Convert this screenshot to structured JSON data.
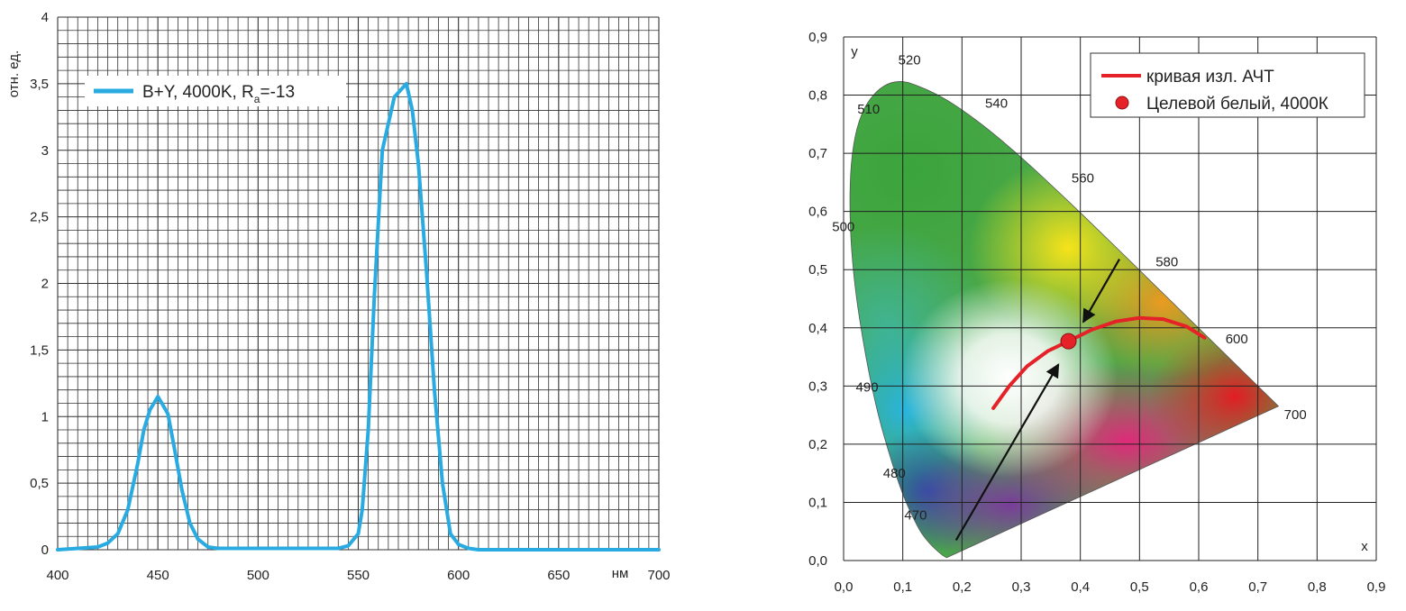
{
  "chart_data": [
    {
      "type": "line",
      "title": "",
      "xlabel": "нм",
      "ylabel": "отн. ед.",
      "xlim": [
        400,
        700
      ],
      "ylim": [
        0,
        4
      ],
      "x_ticks": [
        "400",
        "450",
        "500",
        "550",
        "600",
        "650",
        "700"
      ],
      "y_ticks": [
        "0",
        "0,5",
        "1",
        "1,5",
        "2",
        "2,5",
        "3",
        "3,5",
        "4"
      ],
      "grid": true,
      "legend": "top-left",
      "series": [
        {
          "name": "B+Y, 4000K, R",
          "name_subscript": "a",
          "name_suffix": "=-13",
          "color": "#29abe2",
          "x": [
            400,
            410,
            420,
            425,
            430,
            435,
            440,
            443,
            446,
            450,
            452,
            455,
            458,
            462,
            466,
            470,
            475,
            480,
            500,
            520,
            540,
            545,
            550,
            552,
            555,
            558,
            562,
            565,
            568,
            571,
            574,
            577,
            580,
            584,
            588,
            592,
            596,
            600,
            605,
            610,
            650,
            700
          ],
          "y": [
            0,
            0.01,
            0.02,
            0.05,
            0.12,
            0.3,
            0.65,
            0.9,
            1.05,
            1.15,
            1.1,
            1.02,
            0.78,
            0.45,
            0.2,
            0.08,
            0.02,
            0.01,
            0.01,
            0.01,
            0.01,
            0.03,
            0.12,
            0.3,
            0.9,
            1.9,
            3.0,
            3.2,
            3.4,
            3.45,
            3.5,
            3.3,
            2.9,
            2.1,
            1.2,
            0.5,
            0.12,
            0.04,
            0.01,
            0,
            0,
            0
          ]
        }
      ]
    },
    {
      "type": "scatter",
      "title": "",
      "xlabel": "x",
      "ylabel": "y",
      "xlim": [
        0,
        0.9
      ],
      "ylim": [
        0,
        0.9
      ],
      "x_ticks": [
        "0,0",
        "0,1",
        "0,2",
        "0,3",
        "0,4",
        "0,5",
        "0,6",
        "0,7",
        "0,8",
        "0,9"
      ],
      "y_ticks": [
        "0,0",
        "0,1",
        "0,2",
        "0,3",
        "0,4",
        "0,5",
        "0,6",
        "0,7",
        "0,8",
        "0,9"
      ],
      "grid": true,
      "legend": "top-right",
      "locus": {
        "x": [
          0.1741,
          0.1666,
          0.144,
          0.1241,
          0.0913,
          0.0454,
          0.0082,
          0.0139,
          0.0743,
          0.1547,
          0.2296,
          0.3016,
          0.3731,
          0.4441,
          0.5125,
          0.5752,
          0.627,
          0.7347
        ],
        "y": [
          0.005,
          0.0089,
          0.0297,
          0.0578,
          0.1327,
          0.295,
          0.5384,
          0.7502,
          0.8338,
          0.8059,
          0.7543,
          0.6923,
          0.6245,
          0.5547,
          0.4866,
          0.4242,
          0.3725,
          0.2653
        ]
      },
      "wavelength_labels": [
        {
          "text": "470",
          "x": 0.124,
          "y": 0.058
        },
        {
          "text": "480",
          "x": 0.091,
          "y": 0.133
        },
        {
          "text": "490",
          "x": 0.045,
          "y": 0.295
        },
        {
          "text": "500",
          "x": 0.008,
          "y": 0.538
        },
        {
          "text": "510",
          "x": 0.014,
          "y": 0.75
        },
        {
          "text": "520",
          "x": 0.074,
          "y": 0.834
        },
        {
          "text": "540",
          "x": 0.23,
          "y": 0.754
        },
        {
          "text": "560",
          "x": 0.373,
          "y": 0.625
        },
        {
          "text": "580",
          "x": 0.512,
          "y": 0.487
        },
        {
          "text": "600",
          "x": 0.627,
          "y": 0.373
        },
        {
          "text": "700",
          "x": 0.735,
          "y": 0.265
        }
      ],
      "series": [
        {
          "name": "кривая изл. АЧТ",
          "color": "#e52228",
          "x": [
            0.253,
            0.28,
            0.31,
            0.345,
            0.38,
            0.42,
            0.46,
            0.5,
            0.54,
            0.58,
            0.61
          ],
          "y": [
            0.262,
            0.3,
            0.334,
            0.36,
            0.377,
            0.397,
            0.411,
            0.417,
            0.415,
            0.402,
            0.383
          ]
        },
        {
          "name": "Целевой белый, 4000К",
          "color": "#e52228",
          "x": [
            0.38
          ],
          "y": [
            0.377
          ]
        }
      ],
      "arrows": [
        {
          "x": [
            0.19,
            0.363
          ],
          "y": [
            0.035,
            0.337
          ]
        },
        {
          "x": [
            0.466,
            0.405
          ],
          "y": [
            0.518,
            0.41
          ]
        }
      ]
    }
  ]
}
